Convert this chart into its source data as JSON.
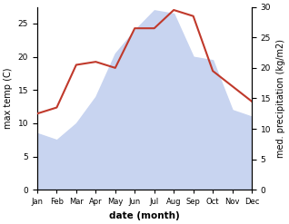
{
  "months": [
    "Jan",
    "Feb",
    "Mar",
    "Apr",
    "May",
    "Jun",
    "Jul",
    "Aug",
    "Sep",
    "Oct",
    "Nov",
    "Dec"
  ],
  "max_temp": [
    8.5,
    7.5,
    10.0,
    14.0,
    20.5,
    24.0,
    27.0,
    26.5,
    20.0,
    19.5,
    12.0,
    11.0
  ],
  "precipitation": [
    12.5,
    13.5,
    20.5,
    21.0,
    20.0,
    26.5,
    26.5,
    29.5,
    28.5,
    19.5,
    17.0,
    14.5
  ],
  "precip_line_color": "#c0392b",
  "temp_fill_color": "#c8d4f0",
  "left_ylim": [
    0,
    27.5
  ],
  "right_ylim": [
    0,
    30
  ],
  "left_yticks": [
    0,
    5,
    10,
    15,
    20,
    25
  ],
  "right_yticks": [
    0,
    5,
    10,
    15,
    20,
    25,
    30
  ],
  "xlabel": "date (month)",
  "ylabel_left": "max temp (C)",
  "ylabel_right": "med. precipitation (kg/m2)",
  "background_color": "#ffffff"
}
